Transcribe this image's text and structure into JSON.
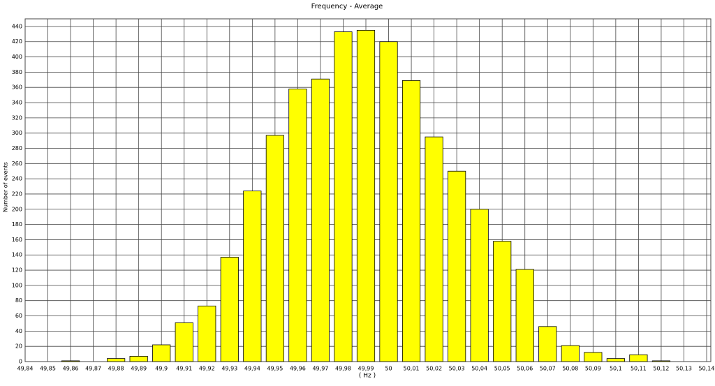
{
  "chart_data": {
    "type": "bar",
    "title": "Frequency  -  Average",
    "xlabel": "( Hz )",
    "ylabel": "Number of events",
    "x": [
      49.86,
      49.87,
      49.88,
      49.89,
      49.9,
      49.91,
      49.92,
      49.93,
      49.94,
      49.95,
      49.96,
      49.97,
      49.98,
      49.99,
      50,
      50.01,
      50.02,
      50.03,
      50.04,
      50.05,
      50.06,
      50.07,
      50.08,
      50.09,
      50.1,
      50.11,
      50.12
    ],
    "values": [
      1,
      0,
      4,
      7,
      22,
      51,
      73,
      137,
      224,
      297,
      358,
      371,
      433,
      435,
      420,
      369,
      295,
      250,
      200,
      158,
      121,
      46,
      21,
      12,
      4,
      9,
      1
    ],
    "color": "#ffff00",
    "xlim": [
      49.84,
      50.14
    ],
    "xticks": [
      {
        "value": 49.84,
        "label": "49,84"
      },
      {
        "value": 49.85,
        "label": "49,85"
      },
      {
        "value": 49.86,
        "label": "49,86"
      },
      {
        "value": 49.87,
        "label": "49,87"
      },
      {
        "value": 49.88,
        "label": "49,88"
      },
      {
        "value": 49.89,
        "label": "49,89"
      },
      {
        "value": 49.9,
        "label": "49,9"
      },
      {
        "value": 49.91,
        "label": "49,91"
      },
      {
        "value": 49.92,
        "label": "49,92"
      },
      {
        "value": 49.93,
        "label": "49,93"
      },
      {
        "value": 49.94,
        "label": "49,94"
      },
      {
        "value": 49.95,
        "label": "49,95"
      },
      {
        "value": 49.96,
        "label": "49,96"
      },
      {
        "value": 49.97,
        "label": "49,97"
      },
      {
        "value": 49.98,
        "label": "49,98"
      },
      {
        "value": 49.99,
        "label": "49,99"
      },
      50,
      {
        "value": 50.01,
        "label": "50,01"
      },
      {
        "value": 50.02,
        "label": "50,02"
      },
      {
        "value": 50.03,
        "label": "50,03"
      },
      {
        "value": 50.04,
        "label": "50,04"
      },
      {
        "value": 50.05,
        "label": "50,05"
      },
      {
        "value": 50.06,
        "label": "50,06"
      },
      {
        "value": 50.07,
        "label": "50,07"
      },
      {
        "value": 50.08,
        "label": "50,08"
      },
      {
        "value": 50.09,
        "label": "50,09"
      },
      {
        "value": 50.1,
        "label": "50,1"
      },
      {
        "value": 50.11,
        "label": "50,11"
      },
      {
        "value": 50.12,
        "label": "50,12"
      },
      {
        "value": 50.13,
        "label": "50,13"
      },
      {
        "value": 50.14,
        "label": "50,14"
      }
    ],
    "ylim": [
      0,
      450
    ],
    "yticks": [
      0,
      20,
      40,
      60,
      80,
      100,
      120,
      140,
      160,
      180,
      200,
      220,
      240,
      260,
      280,
      300,
      320,
      340,
      360,
      380,
      400,
      420,
      440
    ],
    "grid": true
  }
}
